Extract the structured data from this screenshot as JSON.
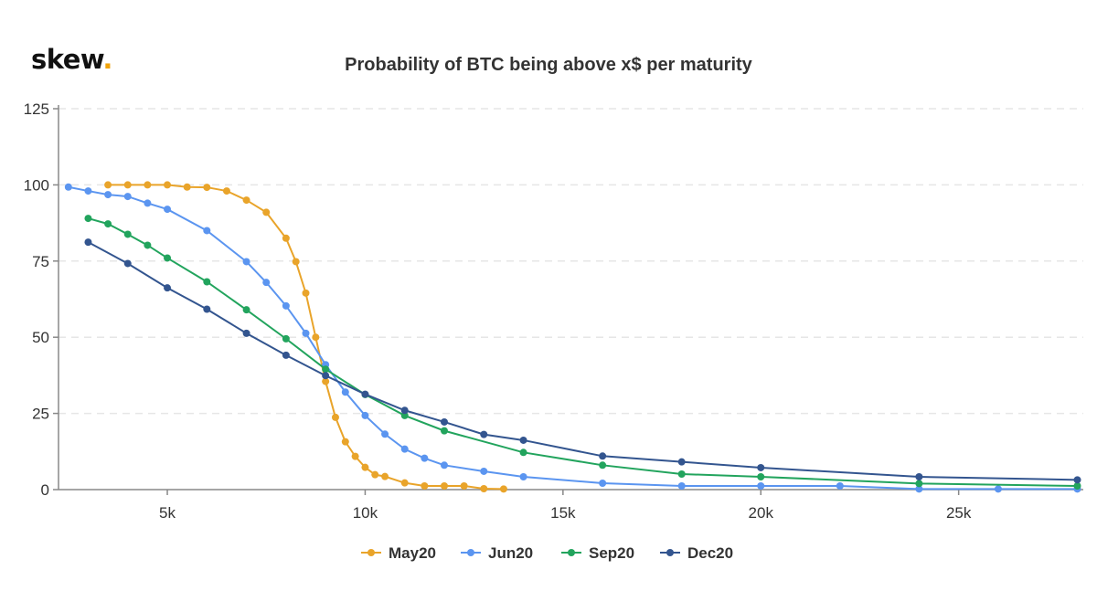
{
  "logo": {
    "text": "skew",
    "dot": "."
  },
  "chart_data": {
    "type": "line",
    "title": "Probability of BTC being above x$ per maturity",
    "xlabel": "",
    "ylabel": "",
    "xlim": [
      2250,
      28150
    ],
    "ylim": [
      0,
      125
    ],
    "xticks": [
      {
        "v": 5000,
        "label": "5k"
      },
      {
        "v": 10000,
        "label": "10k"
      },
      {
        "v": 15000,
        "label": "15k"
      },
      {
        "v": 20000,
        "label": "20k"
      },
      {
        "v": 25000,
        "label": "25k"
      }
    ],
    "yticks": [
      {
        "v": 0,
        "label": "0"
      },
      {
        "v": 25,
        "label": "25"
      },
      {
        "v": 50,
        "label": "50"
      },
      {
        "v": 75,
        "label": "75"
      },
      {
        "v": 100,
        "label": "100"
      },
      {
        "v": 125,
        "label": "125"
      }
    ],
    "grid": "horizontal dashed",
    "legend": "bottom",
    "series": [
      {
        "name": "May20",
        "color": "#e9a42a",
        "x": [
          3500,
          4000,
          4500,
          5000,
          5500,
          6000,
          6500,
          7000,
          7500,
          8000,
          8250,
          8500,
          8750,
          9000,
          9250,
          9500,
          9750,
          10000,
          10250,
          10500,
          11000,
          11500,
          12000,
          12500,
          13000,
          13500
        ],
        "y": [
          100,
          100,
          100,
          100,
          99.3,
          99.2,
          98,
          95,
          91,
          82.5,
          74.8,
          64.5,
          50,
          35.5,
          23.7,
          15.7,
          10.9,
          7.3,
          4.9,
          4.3,
          2.2,
          1.2,
          1.2,
          1.2,
          0.3,
          0.2
        ]
      },
      {
        "name": "Jun20",
        "color": "#5b95f0",
        "x": [
          2500,
          3000,
          3500,
          4000,
          4500,
          5000,
          6000,
          7000,
          7500,
          8000,
          8500,
          9000,
          9500,
          10000,
          10500,
          11000,
          11500,
          12000,
          13000,
          14000,
          16000,
          18000,
          20000,
          22000,
          24000,
          26000,
          28000
        ],
        "y": [
          99.3,
          98,
          96.8,
          96.2,
          94,
          92,
          85,
          74.8,
          68,
          60.3,
          51.3,
          41,
          32,
          24.3,
          18.2,
          13.3,
          10.3,
          8,
          6,
          4.2,
          2.1,
          1.2,
          1.2,
          1.2,
          0.2,
          0.2,
          0.2
        ]
      },
      {
        "name": "Sep20",
        "color": "#22a45d",
        "x": [
          3000,
          3500,
          4000,
          4500,
          5000,
          6000,
          7000,
          8000,
          9000,
          10000,
          11000,
          12000,
          14000,
          16000,
          18000,
          20000,
          24000,
          28000
        ],
        "y": [
          89,
          87.2,
          83.8,
          80.2,
          76,
          68.2,
          59,
          49.5,
          39.5,
          31.2,
          24.3,
          19.3,
          12.2,
          8,
          5.1,
          4.2,
          2,
          1.2
        ]
      },
      {
        "name": "Dec20",
        "color": "#33558f",
        "x": [
          3000,
          4000,
          5000,
          6000,
          7000,
          8000,
          9000,
          10000,
          11000,
          12000,
          13000,
          14000,
          16000,
          18000,
          20000,
          24000,
          28000
        ],
        "y": [
          81.2,
          74.2,
          66.2,
          59.2,
          51.3,
          44.1,
          37.4,
          31.3,
          26,
          22.2,
          18.1,
          16.2,
          11,
          9.1,
          7.2,
          4.2,
          3.2
        ]
      }
    ]
  }
}
